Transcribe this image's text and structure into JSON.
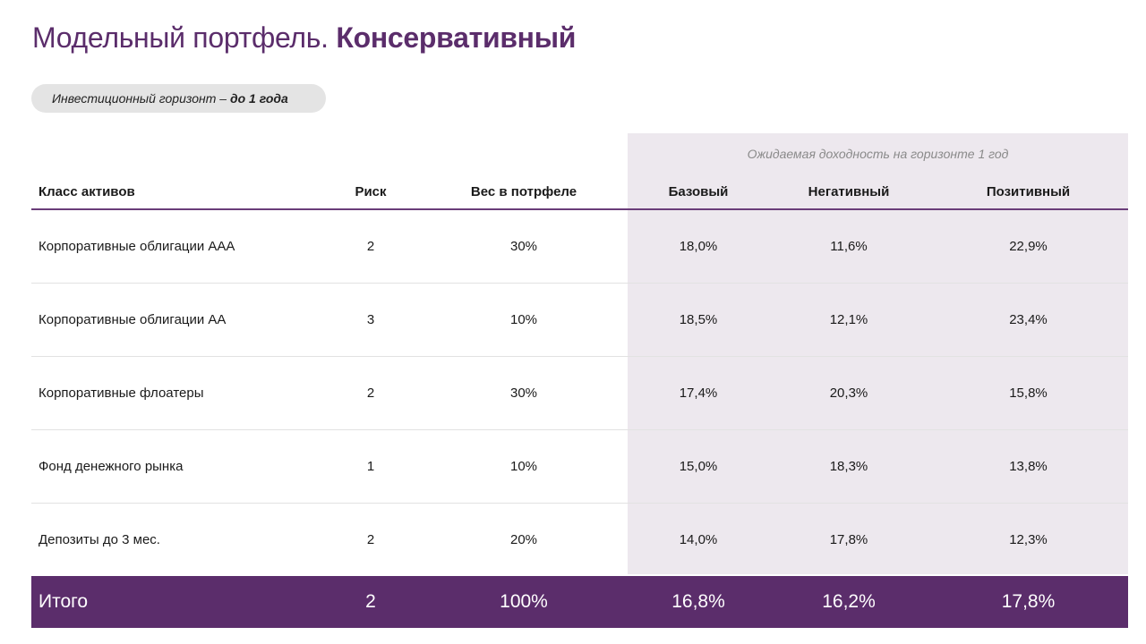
{
  "title": {
    "regular": "Модельный портфель.",
    "bold": "Консервативный"
  },
  "horizon": {
    "label": "Инвестиционный горизонт – ",
    "value": "до 1 года"
  },
  "table": {
    "super_header": "Ожидаемая доходность на горизонте 1 год",
    "columns": [
      "Класс активов",
      "Риск",
      "Вес в потрфеле",
      "Базовый",
      "Негативный",
      "Позитивный"
    ],
    "rows": [
      [
        "Корпоративные облигации ААА",
        "2",
        "30%",
        "18,0%",
        "11,6%",
        "22,9%"
      ],
      [
        "Корпоративные облигации АА",
        "3",
        "10%",
        "18,5%",
        "12,1%",
        "23,4%"
      ],
      [
        "Корпоративные флоатеры",
        "2",
        "30%",
        "17,4%",
        "20,3%",
        "15,8%"
      ],
      [
        "Фонд денежного рынка",
        "1",
        "10%",
        "15,0%",
        "18,3%",
        "13,8%"
      ],
      [
        "Депозиты до 3 мес.",
        "2",
        "20%",
        "14,0%",
        "17,8%",
        "12,3%"
      ]
    ],
    "total": [
      "Итого",
      "2",
      "100%",
      "16,8%",
      "16,2%",
      "17,8%"
    ]
  },
  "colors": {
    "accent": "#5b2d6b",
    "shade": "#ede8ee"
  }
}
